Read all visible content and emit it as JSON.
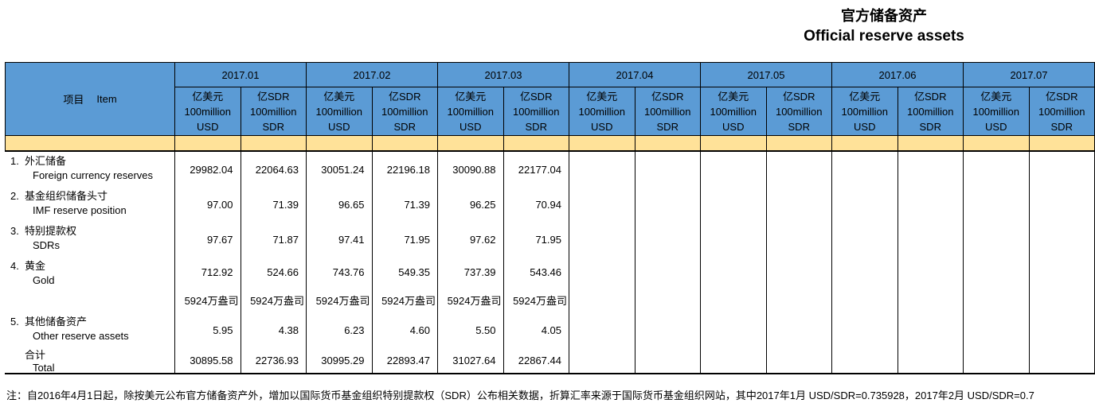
{
  "title": {
    "zh": "官方储备资产",
    "en": "Official reserve assets"
  },
  "table": {
    "item_header_zh": "项目",
    "item_header_en": "Item",
    "months": [
      "2017.01",
      "2017.02",
      "2017.03",
      "2017.04",
      "2017.05",
      "2017.06",
      "2017.07"
    ],
    "unit_usd": "亿美元\n100million\nUSD",
    "unit_sdr": "亿SDR\n100million\nSDR",
    "rows": [
      {
        "num": "1.",
        "zh": "外汇储备",
        "en": "Foreign currency reserves",
        "values": [
          "29982.04",
          "22064.63",
          "30051.24",
          "22196.18",
          "30090.88",
          "22177.04",
          "",
          "",
          "",
          "",
          "",
          "",
          "",
          ""
        ]
      },
      {
        "num": "2.",
        "zh": "基金组织储备头寸",
        "en": "IMF reserve position",
        "values": [
          "97.00",
          "71.39",
          "96.65",
          "71.39",
          "96.25",
          "70.94",
          "",
          "",
          "",
          "",
          "",
          "",
          "",
          ""
        ]
      },
      {
        "num": "3.",
        "zh": "特别提款权",
        "en": "SDRs",
        "values": [
          "97.67",
          "71.87",
          "97.41",
          "71.95",
          "97.62",
          "71.95",
          "",
          "",
          "",
          "",
          "",
          "",
          "",
          ""
        ]
      },
      {
        "num": "4.",
        "zh": "黄金",
        "en": "Gold",
        "values": [
          "712.92",
          "524.66",
          "743.76",
          "549.35",
          "737.39",
          "543.46",
          "",
          "",
          "",
          "",
          "",
          "",
          "",
          ""
        ]
      },
      {
        "num": "",
        "zh": "",
        "en": "",
        "values": [
          "5924万盎司",
          "5924万盎司",
          "5924万盎司",
          "5924万盎司",
          "5924万盎司",
          "5924万盎司",
          "",
          "",
          "",
          "",
          "",
          "",
          "",
          ""
        ]
      },
      {
        "num": "5.",
        "zh": "其他储备资产",
        "en": "Other reserve assets",
        "values": [
          "5.95",
          "4.38",
          "6.23",
          "4.60",
          "5.50",
          "4.05",
          "",
          "",
          "",
          "",
          "",
          "",
          "",
          ""
        ]
      },
      {
        "num": "",
        "zh": "合计",
        "en": "Total",
        "values": [
          "30895.58",
          "22736.93",
          "30995.29",
          "22893.47",
          "31027.64",
          "22867.44",
          "",
          "",
          "",
          "",
          "",
          "",
          "",
          ""
        ]
      }
    ]
  },
  "note": "注：自2016年4月1日起，除按美元公布官方储备资产外，增加以国际货币基金组织特别提款权（SDR）公布相关数据，折算汇率来源于国际货币基金组织网站，其中2017年1月 USD/SDR=0.735928，2017年2月 USD/SDR=0.7",
  "colors": {
    "header_blue": "#5B9BD5",
    "band_yellow": "#FFE299",
    "border": "#000000"
  }
}
